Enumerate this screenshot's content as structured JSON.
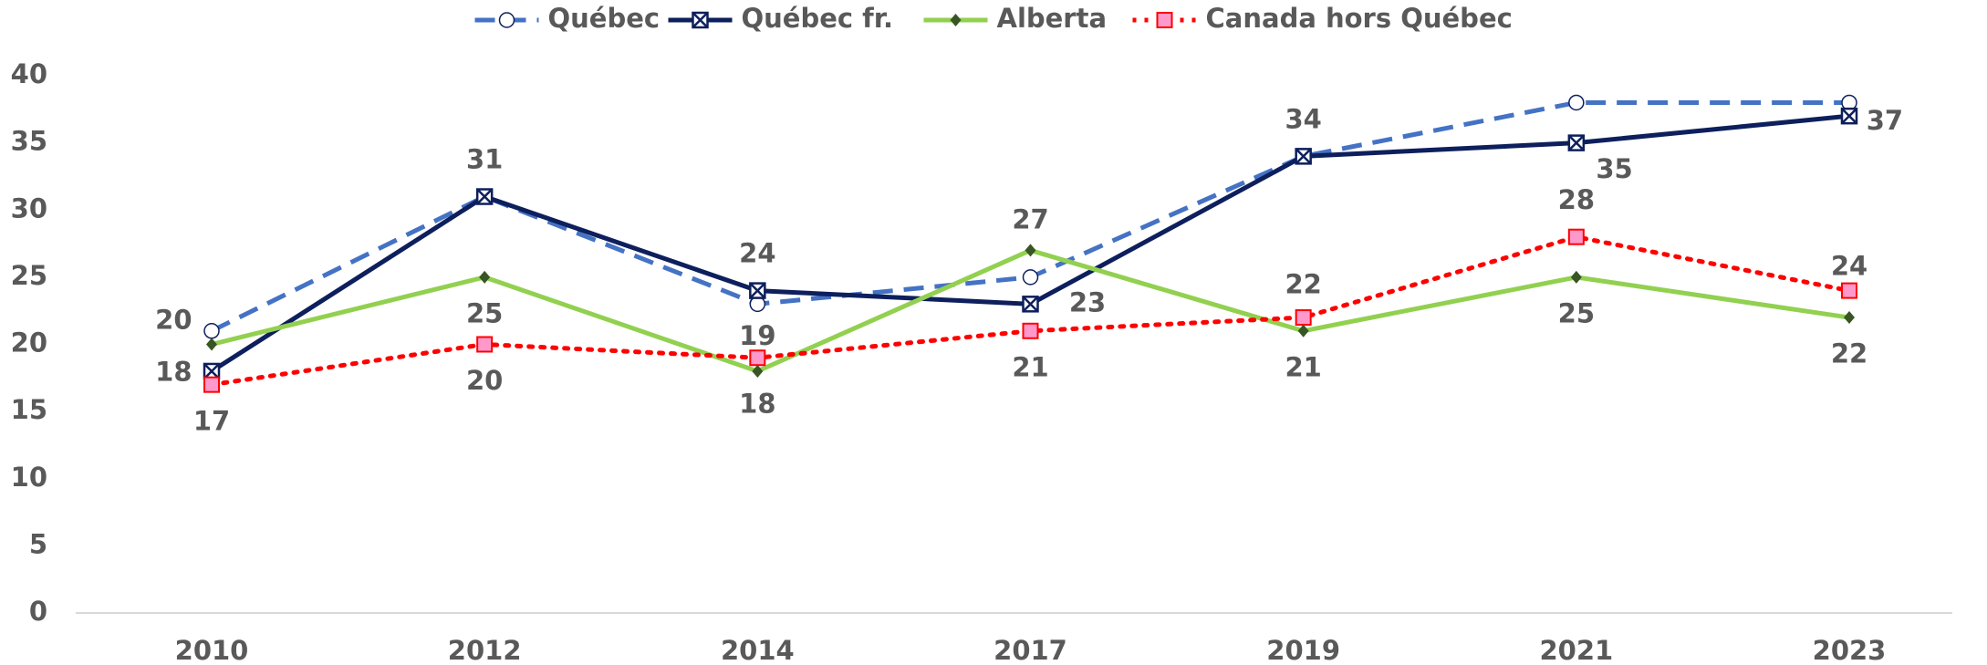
{
  "chart_data": {
    "type": "line",
    "categories": [
      "2010",
      "2012",
      "2014",
      "2017",
      "2019",
      "2021",
      "2023"
    ],
    "series": [
      {
        "name": "Québec",
        "color": "#4472c4",
        "dash": "dashed",
        "marker": "circle",
        "data_labels": false,
        "values": [
          21,
          31,
          23,
          25,
          34,
          38,
          38
        ]
      },
      {
        "name": "Québec fr.",
        "color": "#0d1f5c",
        "dash": "solid",
        "marker": "xsquare",
        "data_labels": true,
        "values": [
          18,
          31,
          24,
          23,
          34,
          35,
          37
        ]
      },
      {
        "name": "Alberta",
        "color": "#92d050",
        "dash": "solid",
        "marker": "diamond",
        "data_labels": true,
        "values": [
          20,
          25,
          18,
          27,
          21,
          25,
          22
        ]
      },
      {
        "name": "Canada hors Québec",
        "color": "#ff0000",
        "dash": "dotted",
        "marker": "square",
        "data_labels": true,
        "values": [
          17,
          20,
          19,
          21,
          22,
          28,
          24
        ]
      }
    ],
    "ylim": [
      0,
      40
    ],
    "yticks": [
      0,
      5,
      10,
      15,
      20,
      25,
      30,
      35,
      40
    ],
    "grid": false,
    "legend": "top"
  }
}
